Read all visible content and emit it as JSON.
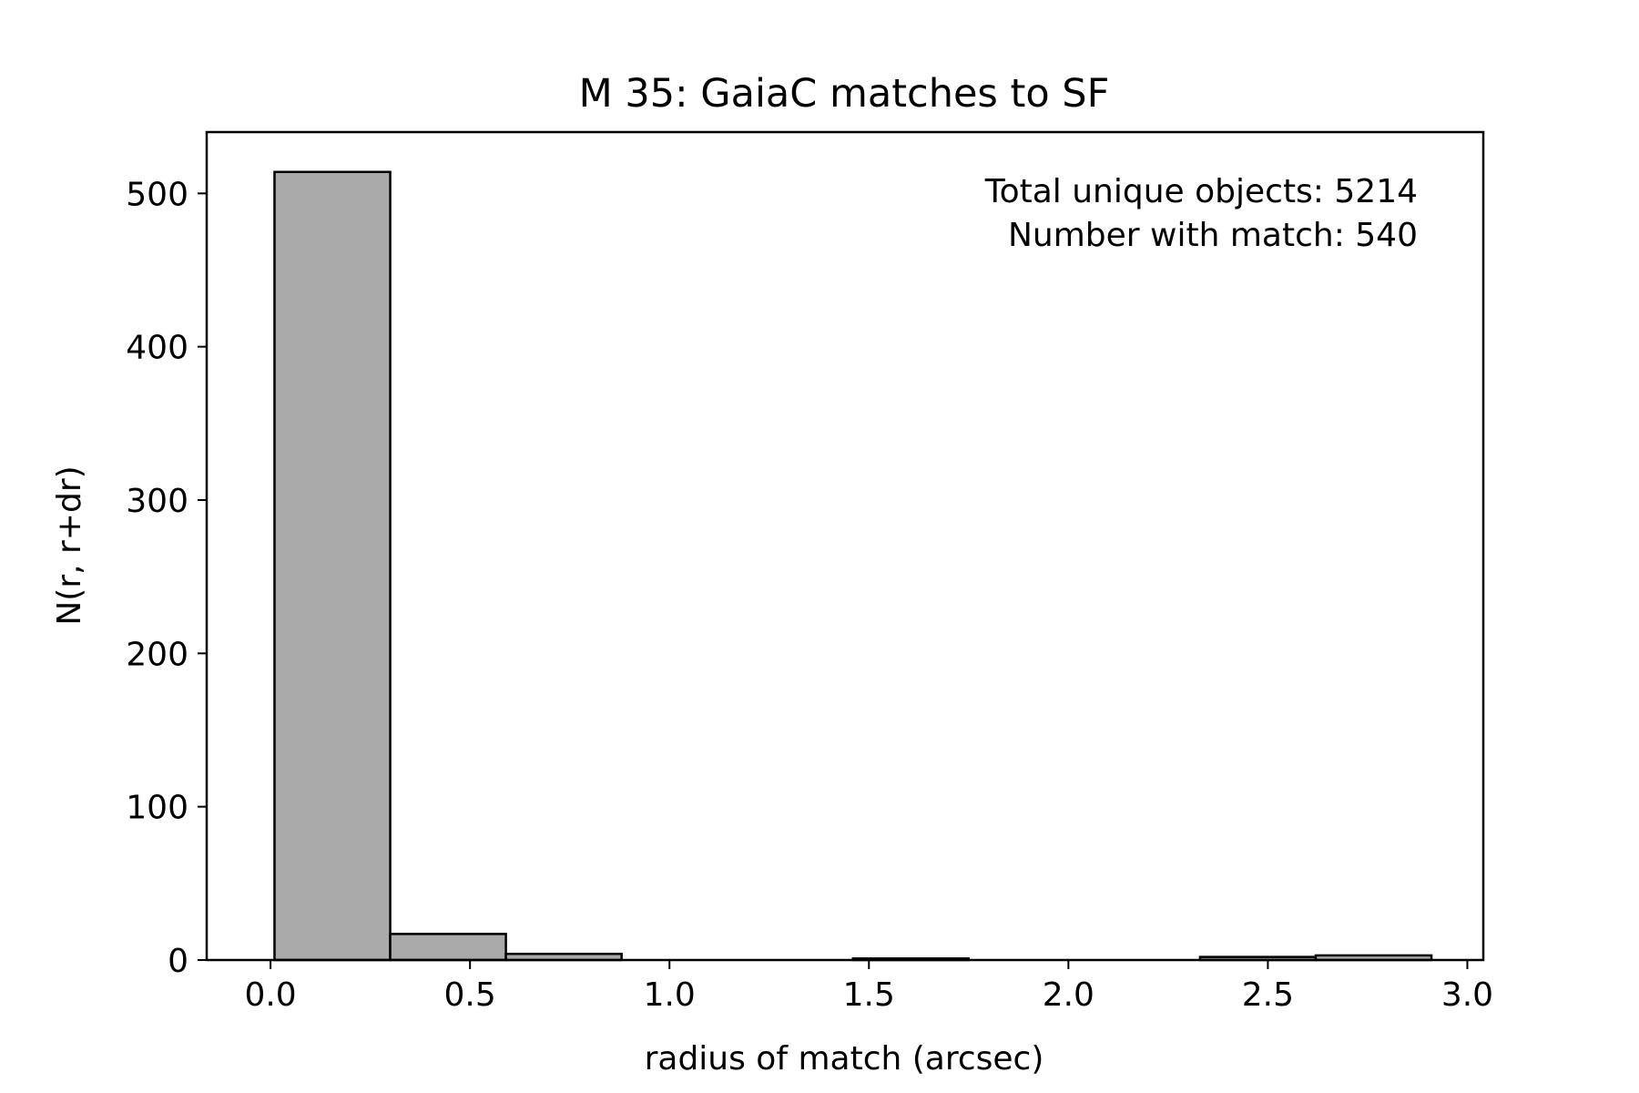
{
  "chart_data": {
    "type": "bar",
    "title": "M 35: GaiaC matches to SF",
    "xlabel": "radius of match (arcsec)",
    "ylabel": "N(r, r+dr)",
    "xlim": [
      -0.16,
      3.04
    ],
    "ylim": [
      0,
      540
    ],
    "xticks": [
      {
        "value": 0.0,
        "label": "0.0"
      },
      {
        "value": 0.5,
        "label": "0.5"
      },
      {
        "value": 1.0,
        "label": "1.0"
      },
      {
        "value": 1.5,
        "label": "1.5"
      },
      {
        "value": 2.0,
        "label": "2.0"
      },
      {
        "value": 2.5,
        "label": "2.5"
      },
      {
        "value": 3.0,
        "label": "3.0"
      }
    ],
    "yticks": [
      {
        "value": 0,
        "label": "0"
      },
      {
        "value": 100,
        "label": "100"
      },
      {
        "value": 200,
        "label": "200"
      },
      {
        "value": 300,
        "label": "300"
      },
      {
        "value": 400,
        "label": "400"
      },
      {
        "value": 500,
        "label": "500"
      }
    ],
    "bins": [
      {
        "start": 0.01,
        "end": 0.3,
        "count": 514
      },
      {
        "start": 0.3,
        "end": 0.59,
        "count": 17
      },
      {
        "start": 0.59,
        "end": 0.88,
        "count": 4
      },
      {
        "start": 0.88,
        "end": 1.17,
        "count": 0
      },
      {
        "start": 1.17,
        "end": 1.46,
        "count": 0
      },
      {
        "start": 1.46,
        "end": 1.75,
        "count": 1
      },
      {
        "start": 1.75,
        "end": 2.04,
        "count": 0
      },
      {
        "start": 2.04,
        "end": 2.33,
        "count": 0
      },
      {
        "start": 2.33,
        "end": 2.62,
        "count": 2
      },
      {
        "start": 2.62,
        "end": 2.91,
        "count": 3
      }
    ],
    "bar_color": "#aaaaaa",
    "edge_color": "#000000",
    "grid": false,
    "annotations": [
      "Total unique objects: 5214",
      "Number with match: 540"
    ]
  }
}
